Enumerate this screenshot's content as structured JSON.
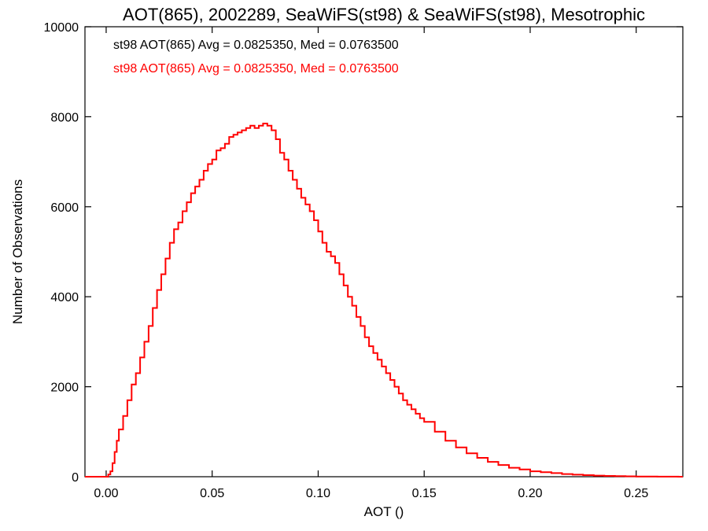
{
  "chart_data": {
    "type": "line",
    "title": "AOT(865), 2002289, SeaWiFS(st98) & SeaWiFS(st98), Mesotrophic",
    "xlabel": "AOT ()",
    "ylabel": "Number of Observations",
    "xlim": [
      -0.01,
      0.272
    ],
    "ylim": [
      0,
      10000
    ],
    "xticks": [
      0.0,
      0.05,
      0.1,
      0.15,
      0.2,
      0.25
    ],
    "xtick_labels": [
      "0.00",
      "0.05",
      "0.10",
      "0.15",
      "0.20",
      "0.25"
    ],
    "yticks": [
      0,
      2000,
      4000,
      6000,
      8000,
      10000
    ],
    "ytick_labels": [
      "0",
      "2000",
      "4000",
      "6000",
      "8000",
      "10000"
    ],
    "grid": false,
    "legend_position": "top-left",
    "step": true,
    "annotations": [
      {
        "text": "st98 AOT(865) Avg = 0.0825350, Med = 0.0763500",
        "color": "#000000"
      },
      {
        "text": "st98 AOT(865) Avg = 0.0825350, Med = 0.0763500",
        "color": "#ff0000"
      }
    ],
    "series": [
      {
        "color": "#ff0000",
        "x": [
          -0.01,
          0.0,
          0.001,
          0.002,
          0.003,
          0.004,
          0.005,
          0.006,
          0.008,
          0.01,
          0.012,
          0.014,
          0.016,
          0.018,
          0.02,
          0.022,
          0.024,
          0.026,
          0.028,
          0.03,
          0.032,
          0.034,
          0.036,
          0.038,
          0.04,
          0.042,
          0.044,
          0.046,
          0.048,
          0.05,
          0.052,
          0.054,
          0.056,
          0.058,
          0.06,
          0.062,
          0.064,
          0.066,
          0.068,
          0.07,
          0.072,
          0.074,
          0.076,
          0.078,
          0.08,
          0.082,
          0.084,
          0.086,
          0.088,
          0.09,
          0.092,
          0.094,
          0.096,
          0.098,
          0.1,
          0.102,
          0.104,
          0.106,
          0.108,
          0.11,
          0.112,
          0.114,
          0.116,
          0.118,
          0.12,
          0.122,
          0.124,
          0.126,
          0.128,
          0.13,
          0.132,
          0.134,
          0.136,
          0.138,
          0.14,
          0.142,
          0.144,
          0.146,
          0.148,
          0.15,
          0.155,
          0.16,
          0.165,
          0.17,
          0.175,
          0.18,
          0.185,
          0.19,
          0.195,
          0.2,
          0.205,
          0.21,
          0.215,
          0.22,
          0.225,
          0.23,
          0.235,
          0.24,
          0.245,
          0.25,
          0.255,
          0.26,
          0.265,
          0.27
        ],
        "y": [
          0,
          0,
          50,
          120,
          300,
          550,
          800,
          1050,
          1350,
          1700,
          2050,
          2300,
          2650,
          3000,
          3350,
          3750,
          4150,
          4500,
          4850,
          5200,
          5500,
          5650,
          5900,
          6100,
          6300,
          6450,
          6600,
          6800,
          6950,
          7050,
          7250,
          7300,
          7400,
          7550,
          7600,
          7650,
          7700,
          7750,
          7800,
          7750,
          7800,
          7850,
          7800,
          7700,
          7500,
          7200,
          7050,
          6800,
          6600,
          6400,
          6200,
          6050,
          5900,
          5700,
          5450,
          5200,
          5000,
          4900,
          4750,
          4500,
          4250,
          4000,
          3800,
          3550,
          3350,
          3100,
          2900,
          2750,
          2600,
          2450,
          2300,
          2150,
          2000,
          1850,
          1700,
          1600,
          1500,
          1400,
          1300,
          1220,
          1000,
          800,
          650,
          520,
          420,
          330,
          260,
          200,
          160,
          120,
          100,
          80,
          60,
          45,
          35,
          25,
          18,
          12,
          8,
          5,
          3,
          2,
          1,
          0
        ]
      }
    ]
  }
}
